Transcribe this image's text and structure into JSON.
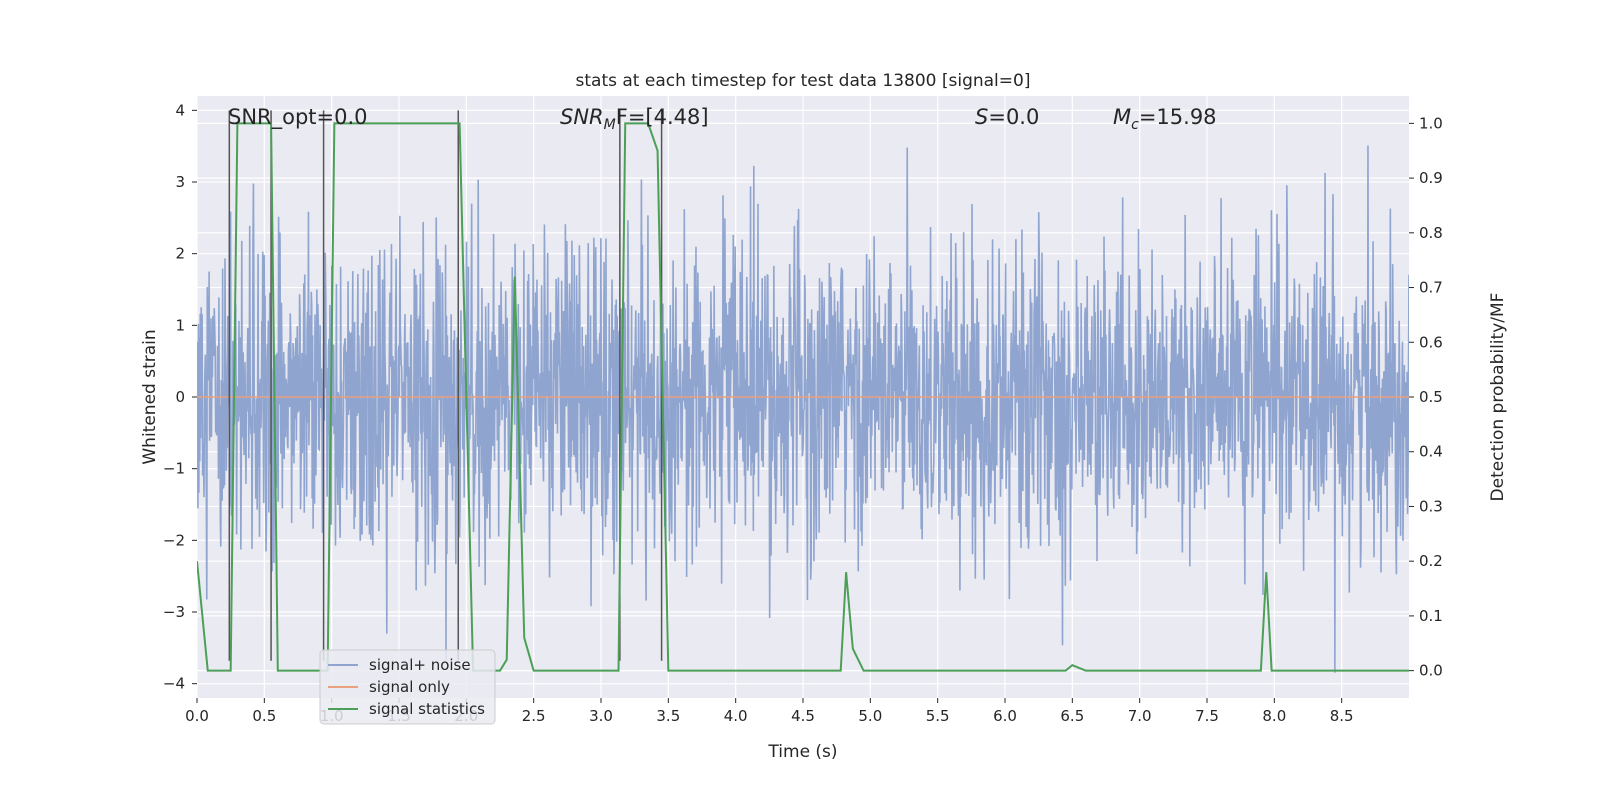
{
  "chart_data": {
    "type": "line",
    "title": "stats at each timestep for test data 13800 [signal=0]",
    "xlabel": "Time (s)",
    "ylabel": "Whitened strain",
    "ylabel_right": "Detection probability/MF",
    "xlim": [
      0.0,
      9.0
    ],
    "ylim": [
      -4.2,
      4.2
    ],
    "ylim_right": [
      -0.05,
      1.05
    ],
    "x_ticks": [
      "0.0",
      "0.5",
      "1.0",
      "1.5",
      "2.0",
      "2.5",
      "3.0",
      "3.5",
      "4.0",
      "4.5",
      "5.0",
      "5.5",
      "6.0",
      "6.5",
      "7.0",
      "7.5",
      "8.0",
      "8.5"
    ],
    "y_ticks": [
      "4",
      "3",
      "2",
      "1",
      "0",
      "−1",
      "−2",
      "−3",
      "−4"
    ],
    "y_ticks_right": [
      "1.0",
      "0.9",
      "0.8",
      "0.7",
      "0.6",
      "0.5",
      "0.4",
      "0.3",
      "0.2",
      "0.1",
      "0.0"
    ],
    "grid": true,
    "legend_position": "lower-left",
    "annotations": {
      "snr_opt": "SNR_opt=0.0",
      "snr_mf_base": "SNR",
      "snr_mf_sub": "M",
      "snr_mf_rest": "F=[4.48]",
      "s_var": "S",
      "s_rest": "=0.0",
      "mc_base": "M",
      "mc_sub": "c",
      "mc_rest": "=15.98"
    },
    "series": [
      {
        "name": "signal+ noise",
        "color": "#8fa5cf",
        "description": "whitened noise, approx. uniform amplitude, values mostly within [-2, 2], peaks up to ~3.8"
      },
      {
        "name": "signal only",
        "color": "#e8a07e",
        "values_constant": 0.0
      },
      {
        "name": "signal statistics",
        "color": "#4c9f57",
        "axis": "right",
        "x": [
          0.0,
          0.08,
          0.12,
          0.25,
          0.3,
          0.55,
          0.6,
          0.65,
          0.93,
          0.97,
          1.02,
          1.5,
          1.9,
          1.95,
          2.0,
          2.05,
          2.1,
          2.2,
          2.25,
          2.3,
          2.36,
          2.43,
          2.5,
          2.6,
          3.0,
          3.13,
          3.18,
          3.35,
          3.42,
          3.5,
          3.55,
          4.0,
          4.5,
          4.78,
          4.82,
          4.87,
          4.95,
          5.5,
          6.0,
          6.45,
          6.5,
          6.55,
          6.6,
          7.0,
          7.5,
          7.9,
          7.94,
          7.98,
          8.1,
          8.5,
          9.0
        ],
        "y": [
          0.2,
          0.0,
          0.0,
          0.0,
          1.0,
          1.0,
          0.0,
          0.0,
          0.0,
          0.0,
          1.0,
          1.0,
          1.0,
          1.0,
          0.5,
          0.0,
          0.0,
          0.0,
          0.0,
          0.02,
          0.72,
          0.06,
          0.0,
          0.0,
          0.0,
          0.0,
          1.0,
          1.0,
          0.95,
          0.0,
          0.0,
          0.0,
          0.0,
          0.0,
          0.18,
          0.04,
          0.0,
          0.0,
          0.0,
          0.0,
          0.01,
          0.005,
          0.0,
          0.0,
          0.0,
          0.0,
          0.18,
          0.0,
          0.0,
          0.0,
          0.0
        ]
      }
    ],
    "vertical_markers_x": [
      0.24,
      0.55,
      0.94,
      1.94,
      3.14,
      3.45
    ]
  },
  "legend": {
    "noise_label": "signal+ noise",
    "signal_label": "signal only",
    "stats_label": "signal statistics"
  },
  "colors": {
    "background": "#eaeaf2",
    "grid": "#ffffff",
    "noise": "#8fa5cf",
    "signal": "#e8a07e",
    "stats": "#4c9f57",
    "marker": "#555555"
  }
}
